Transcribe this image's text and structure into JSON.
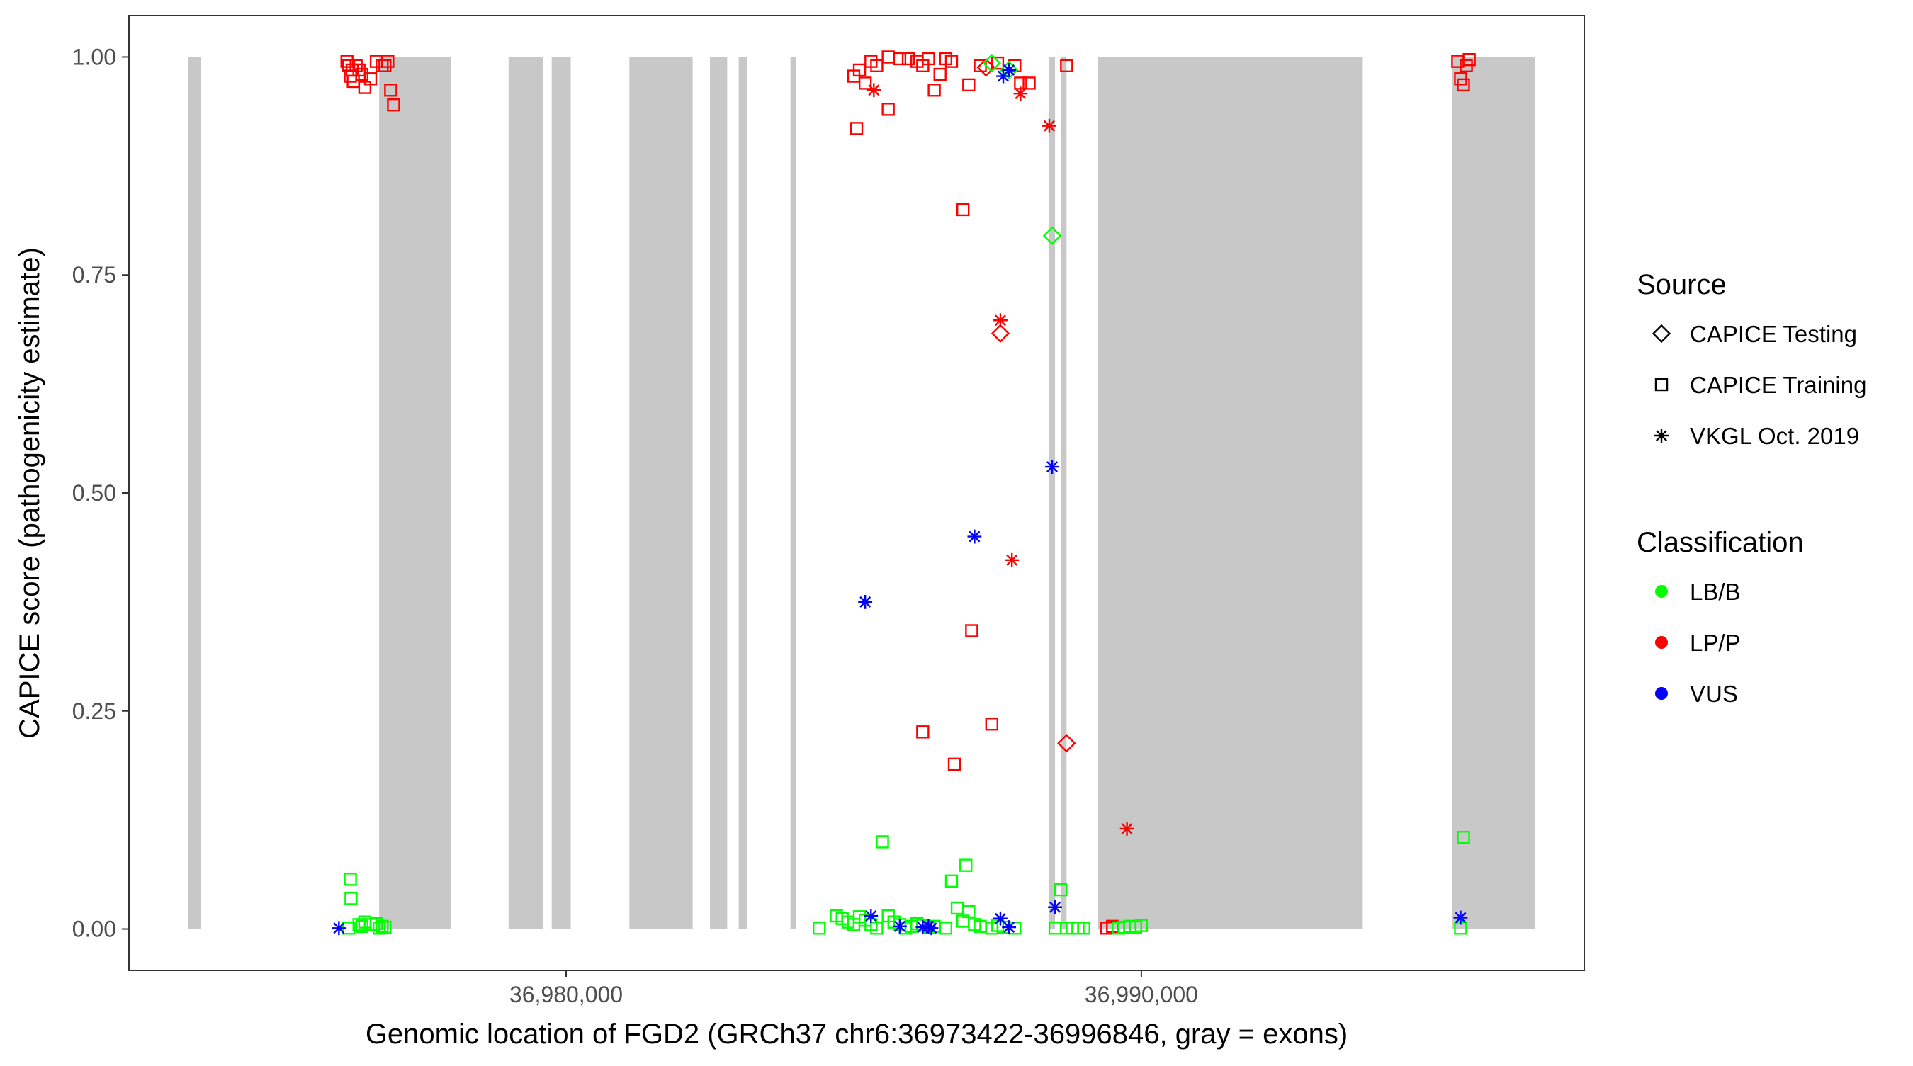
{
  "chart_data": {
    "type": "scatter",
    "title": "",
    "xlabel": "Genomic location of FGD2 (GRCh37 chr6:36973422-36996846, gray = exons)",
    "ylabel": "CAPICE score (pathogenicity estimate)",
    "xlim": [
      36972400,
      36997700
    ],
    "ylim": [
      -0.0475,
      1.0475
    ],
    "x_ticks": [
      {
        "value": 36980000,
        "label": "36,980,000"
      },
      {
        "value": 36990000,
        "label": "36,990,000"
      }
    ],
    "y_ticks": [
      {
        "value": 0.0,
        "label": "0.00"
      },
      {
        "value": 0.25,
        "label": "0.25"
      },
      {
        "value": 0.5,
        "label": "0.50"
      },
      {
        "value": 0.75,
        "label": "0.75"
      },
      {
        "value": 1.0,
        "label": "1.00"
      }
    ],
    "grid": false,
    "exons": [
      [
        36973422,
        36973650
      ],
      [
        36976750,
        36978000
      ],
      [
        36979000,
        36979600
      ],
      [
        36979750,
        36980080
      ],
      [
        36981100,
        36982200
      ],
      [
        36982500,
        36982800
      ],
      [
        36983000,
        36983150
      ],
      [
        36983900,
        36984000
      ],
      [
        36988400,
        36988500
      ],
      [
        36988600,
        36988700
      ],
      [
        36989250,
        36993850
      ],
      [
        36995400,
        36996846
      ]
    ],
    "legend": {
      "position": "right",
      "source_title": "Source",
      "source_entries": [
        {
          "name": "CAPICE Testing",
          "shape": "diamond"
        },
        {
          "name": "CAPICE Training",
          "shape": "square"
        },
        {
          "name": "VKGL Oct. 2019",
          "shape": "asterisk"
        }
      ],
      "class_title": "Classification",
      "class_entries": [
        {
          "name": "LB/B",
          "color": "#00ff00"
        },
        {
          "name": "LP/P",
          "color": "#ff0000"
        },
        {
          "name": "VUS",
          "color": "#0000ff"
        }
      ]
    },
    "series": [
      {
        "source": "CAPICE Training",
        "classification": "LP/P",
        "shape": "square",
        "color": "#ff0000",
        "points": [
          [
            36976190,
            0.995
          ],
          [
            36976220,
            0.99
          ],
          [
            36976280,
            0.985
          ],
          [
            36976350,
            0.99
          ],
          [
            36976250,
            0.978
          ],
          [
            36976300,
            0.972
          ],
          [
            36976400,
            0.985
          ],
          [
            36976450,
            0.98
          ],
          [
            36976500,
            0.965
          ],
          [
            36976600,
            0.975
          ],
          [
            36976700,
            0.995
          ],
          [
            36976800,
            0.99
          ],
          [
            36976850,
            0.99
          ],
          [
            36976900,
            0.995
          ],
          [
            36976950,
            0.962
          ],
          [
            36977000,
            0.945
          ],
          [
            36985000,
            0.978
          ],
          [
            36985100,
            0.985
          ],
          [
            36985200,
            0.97
          ],
          [
            36985300,
            0.995
          ],
          [
            36985400,
            0.99
          ],
          [
            36985600,
            1.0
          ],
          [
            36985800,
            0.998
          ],
          [
            36985950,
            0.998
          ],
          [
            36986100,
            0.995
          ],
          [
            36986200,
            0.99
          ],
          [
            36986300,
            0.998
          ],
          [
            36986400,
            0.962
          ],
          [
            36986500,
            0.98
          ],
          [
            36986600,
            0.998
          ],
          [
            36986700,
            0.995
          ],
          [
            36987000,
            0.968
          ],
          [
            36987200,
            0.99
          ],
          [
            36987500,
            0.993
          ],
          [
            36987800,
            0.99
          ],
          [
            36987900,
            0.97
          ],
          [
            36988050,
            0.97
          ],
          [
            36988700,
            0.99
          ],
          [
            36985050,
            0.918
          ],
          [
            36985600,
            0.94
          ],
          [
            36986900,
            0.825
          ],
          [
            36987050,
            0.342
          ],
          [
            36987400,
            0.235
          ],
          [
            36986200,
            0.226
          ],
          [
            36986750,
            0.189
          ],
          [
            36989500,
            0.003
          ],
          [
            36989400,
            0.001
          ],
          [
            36995500,
            0.995
          ],
          [
            36995550,
            0.975
          ],
          [
            36995600,
            0.968
          ],
          [
            36995650,
            0.99
          ],
          [
            36995700,
            0.997
          ]
        ]
      },
      {
        "source": "CAPICE Training",
        "classification": "LB/B",
        "shape": "square",
        "color": "#00ff00",
        "points": [
          [
            36976250,
            0.057
          ],
          [
            36976260,
            0.035
          ],
          [
            36976220,
            0.001
          ],
          [
            36976400,
            0.005
          ],
          [
            36976450,
            0.003
          ],
          [
            36976500,
            0.008
          ],
          [
            36976600,
            0.005
          ],
          [
            36976700,
            0.006
          ],
          [
            36976750,
            0.001
          ],
          [
            36976800,
            0.003
          ],
          [
            36976850,
            0.002
          ],
          [
            36984700,
            0.015
          ],
          [
            36984800,
            0.012
          ],
          [
            36984900,
            0.008
          ],
          [
            36985000,
            0.005
          ],
          [
            36985100,
            0.014
          ],
          [
            36985200,
            0.01
          ],
          [
            36985300,
            0.005
          ],
          [
            36985400,
            0.001
          ],
          [
            36985600,
            0.015
          ],
          [
            36985700,
            0.008
          ],
          [
            36985800,
            0.005
          ],
          [
            36985900,
            0.001
          ],
          [
            36986000,
            0.003
          ],
          [
            36986100,
            0.006
          ],
          [
            36986200,
            0.004
          ],
          [
            36986300,
            0.002
          ],
          [
            36986400,
            0.003
          ],
          [
            36986600,
            0.001
          ],
          [
            36986800,
            0.024
          ],
          [
            36986900,
            0.009
          ],
          [
            36987000,
            0.02
          ],
          [
            36987100,
            0.005
          ],
          [
            36987200,
            0.003
          ],
          [
            36987400,
            0.001
          ],
          [
            36987500,
            0.004
          ],
          [
            36987600,
            0.002
          ],
          [
            36987800,
            0.001
          ],
          [
            36984400,
            0.001
          ],
          [
            36985500,
            0.1
          ],
          [
            36986700,
            0.055
          ],
          [
            36986950,
            0.073
          ],
          [
            36988600,
            0.045
          ],
          [
            36988500,
            0.001
          ],
          [
            36988700,
            0.001
          ],
          [
            36988800,
            0.001
          ],
          [
            36988900,
            0.001
          ],
          [
            36989000,
            0.001
          ],
          [
            36989600,
            0.001
          ],
          [
            36989700,
            0.002
          ],
          [
            36989800,
            0.003
          ],
          [
            36989900,
            0.002
          ],
          [
            36990000,
            0.004
          ],
          [
            36995600,
            0.105
          ],
          [
            36995550,
            0.001
          ]
        ]
      },
      {
        "source": "CAPICE Testing",
        "classification": "LP/P",
        "shape": "diamond",
        "color": "#ff0000",
        "points": [
          [
            36987300,
            0.988
          ],
          [
            36987550,
            0.683
          ],
          [
            36988700,
            0.213
          ]
        ]
      },
      {
        "source": "CAPICE Testing",
        "classification": "LB/B",
        "shape": "diamond",
        "color": "#00ff00",
        "points": [
          [
            36987400,
            0.993
          ],
          [
            36988450,
            0.795
          ],
          [
            36987700,
            0.985
          ]
        ]
      },
      {
        "source": "VKGL Oct. 2019",
        "classification": "LP/P",
        "shape": "asterisk",
        "color": "#ff0000",
        "points": [
          [
            36985350,
            0.962
          ],
          [
            36987550,
            0.698
          ],
          [
            36987750,
            0.423
          ],
          [
            36988400,
            0.921
          ],
          [
            36989750,
            0.115
          ],
          [
            36987900,
            0.958
          ]
        ]
      },
      {
        "source": "VKGL Oct. 2019",
        "classification": "VUS",
        "shape": "asterisk",
        "color": "#0000ff",
        "points": [
          [
            36976050,
            0.001
          ],
          [
            36985200,
            0.375
          ],
          [
            36985300,
            0.015
          ],
          [
            36985800,
            0.003
          ],
          [
            36986200,
            0.002
          ],
          [
            36986300,
            0.003
          ],
          [
            36986350,
            0.001
          ],
          [
            36987100,
            0.45
          ],
          [
            36987600,
            0.978
          ],
          [
            36987700,
            0.985
          ],
          [
            36987550,
            0.012
          ],
          [
            36987700,
            0.002
          ],
          [
            36988450,
            0.53
          ],
          [
            36988500,
            0.025
          ],
          [
            36995550,
            0.013
          ]
        ]
      }
    ]
  }
}
